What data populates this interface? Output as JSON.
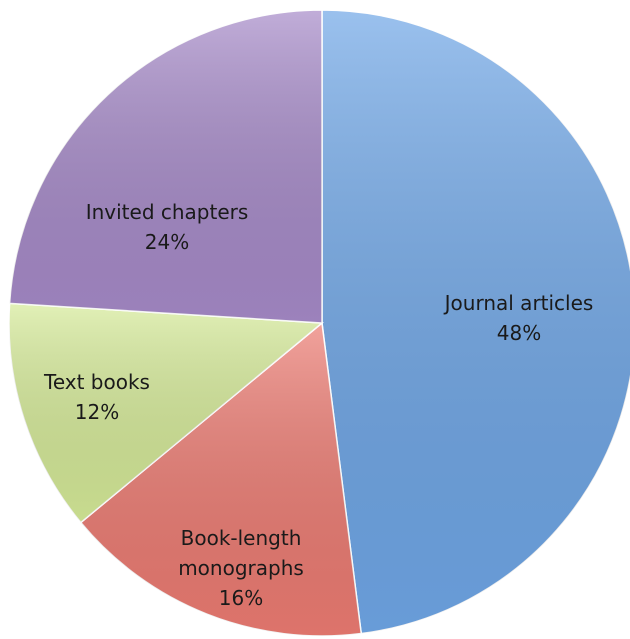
{
  "chart_data": {
    "type": "pie",
    "categories": [
      "Journal articles",
      "Book-length monographs",
      "Text books",
      "Invited chapters"
    ],
    "values": [
      48,
      16,
      12,
      24
    ],
    "value_labels": [
      "48%",
      "16%",
      "12%",
      "24%"
    ],
    "colors": [
      "#6fa6e6",
      "#ec7b72",
      "#d5ea98",
      "#a68ac8"
    ]
  }
}
